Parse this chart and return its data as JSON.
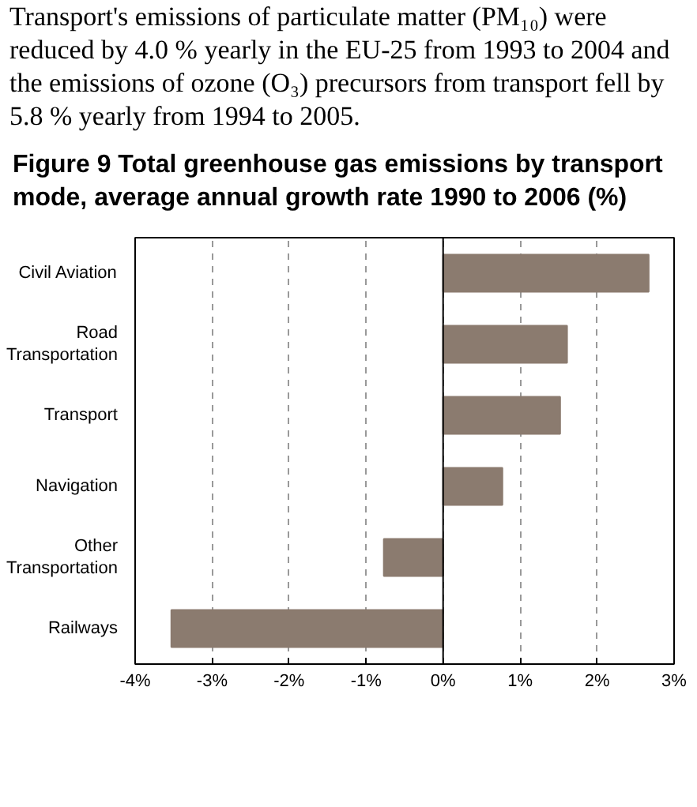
{
  "chart_data": {
    "type": "bar",
    "orientation": "horizontal",
    "title": "Figure 9 Total greenhouse gas emissions by transport mode, average annual growth rate 1990 to 2006 (%)",
    "annotations": [
      "Transport's emissions of particulate matter (PM₁₀) were reduced by 4.0 % yearly in the EU-25 from 1993 to 2004 and the emissions of ozone (O₃) precursors from transport fell by 5.8 % yearly from 1994 to 2005."
    ],
    "categories": [
      "Civil Aviation",
      "Road Transportation",
      "Transport",
      "Navigation",
      "Other Transportation",
      "Railways"
    ],
    "values": [
      2.67,
      1.61,
      1.52,
      0.77,
      -0.77,
      -3.53
    ],
    "color": "#8b7b6f",
    "xlim": [
      -4,
      3
    ],
    "xticks": [
      {
        "value": -4,
        "label": "-4%"
      },
      {
        "value": -3,
        "label": "-3%"
      },
      {
        "value": -2,
        "label": "-2%"
      },
      {
        "value": -1,
        "label": "-1%"
      },
      {
        "value": 0,
        "label": "0%"
      },
      {
        "value": 1,
        "label": "1%"
      },
      {
        "value": 2,
        "label": "2%"
      },
      {
        "value": 3,
        "label": "3%"
      }
    ],
    "grid": "x"
  }
}
